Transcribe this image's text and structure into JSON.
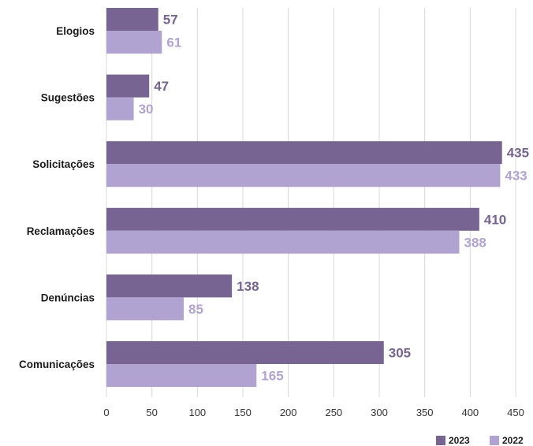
{
  "chart_data": {
    "type": "bar",
    "orientation": "horizontal",
    "categories": [
      "Elogios",
      "Sugestões",
      "Solicitações",
      "Reclamações",
      "Denúncias",
      "Comunicações"
    ],
    "series": [
      {
        "name": "2023",
        "color": "#776492",
        "values": [
          57,
          47,
          435,
          410,
          138,
          305
        ]
      },
      {
        "name": "2022",
        "color": "#b0a3d2",
        "values": [
          61,
          30,
          433,
          388,
          85,
          165
        ]
      }
    ],
    "xlim": [
      0,
      450
    ],
    "xticks": [
      "0",
      "50",
      "100",
      "150",
      "200",
      "250",
      "300",
      "350",
      "400",
      "450"
    ],
    "grid": true,
    "legend_position": "bottom-right"
  }
}
